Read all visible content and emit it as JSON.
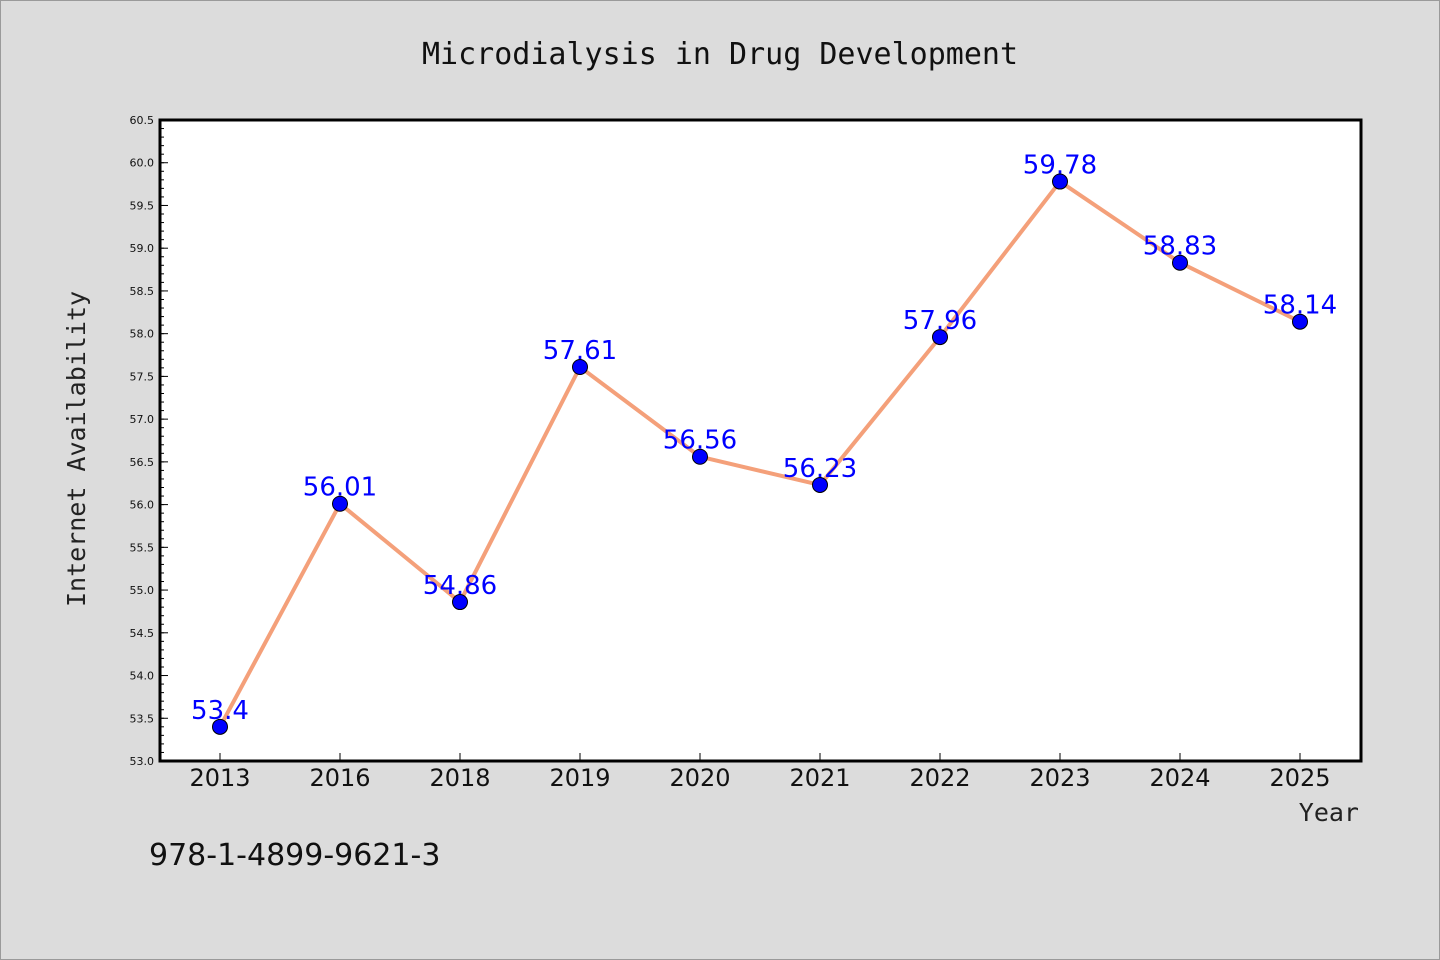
{
  "chart_data": {
    "type": "line",
    "title": "Microdialysis in Drug Development",
    "xlabel": "Year",
    "ylabel": "Internet Availability",
    "categories": [
      "2013",
      "2016",
      "2018",
      "2019",
      "2020",
      "2021",
      "2022",
      "2023",
      "2024",
      "2025"
    ],
    "series": [
      {
        "values": [
          53.4,
          56.01,
          54.86,
          57.61,
          56.56,
          56.23,
          57.96,
          59.78,
          58.83,
          58.14
        ],
        "data_labels": [
          "53.4",
          "56.01",
          "54.86",
          "57.61",
          "56.56",
          "56.23",
          "57.96",
          "59.78",
          "58.83",
          "58.14"
        ],
        "line_color": "#f4a07a",
        "marker_color": "#0000ff",
        "label_color": "#0000ff"
      }
    ],
    "ylim": [
      53.0,
      60.5
    ],
    "yticks": [
      "53.0",
      "53.5",
      "54.0",
      "54.5",
      "55.0",
      "55.5",
      "56.0",
      "56.5",
      "57.0",
      "57.5",
      "58.0",
      "58.5",
      "59.0",
      "59.5",
      "60.0",
      "60.5"
    ],
    "grid": false,
    "legend": "none"
  },
  "footer_text": "978-1-4899-9621-3"
}
